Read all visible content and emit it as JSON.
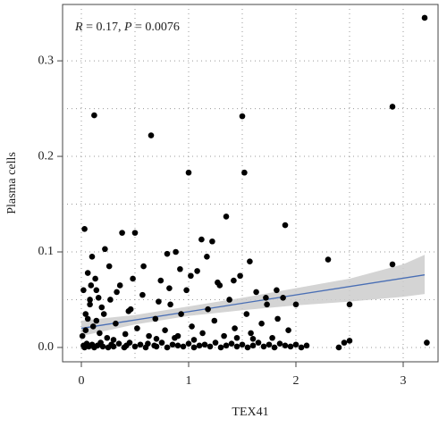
{
  "chart_data": {
    "type": "scatter",
    "annotation": [
      "R",
      " = 0.17, ",
      "P",
      " = 0.0076"
    ],
    "xlabel": "TEX41",
    "ylabel": "Plasma cells",
    "color": "#000000",
    "x": [
      3.2,
      0.12,
      0.65,
      1.5,
      2.9,
      1.0,
      1.52,
      1.35,
      1.9,
      0.03,
      0.38,
      0.5,
      1.12,
      1.22,
      2.3,
      2.9,
      3.22,
      0.1,
      0.22,
      0.88,
      0.8,
      0.02,
      0.03,
      0.05,
      0.07,
      0.1,
      0.12,
      0.15,
      0.18,
      0.2,
      0.25,
      0.28,
      0.3,
      0.35,
      0.4,
      0.42,
      0.45,
      0.5,
      0.55,
      0.6,
      0.62,
      0.68,
      0.7,
      0.75,
      0.8,
      0.85,
      0.9,
      0.95,
      1.0,
      1.05,
      1.1,
      1.15,
      1.2,
      1.25,
      1.3,
      1.35,
      1.4,
      1.45,
      1.5,
      1.55,
      1.6,
      1.65,
      1.7,
      1.75,
      1.8,
      1.85,
      1.9,
      1.95,
      2.0,
      2.05,
      2.1,
      2.4,
      2.45,
      2.5,
      0.01,
      0.04,
      0.06,
      0.08,
      0.11,
      0.14,
      0.17,
      0.21,
      0.24,
      0.27,
      0.32,
      0.36,
      0.41,
      0.46,
      0.52,
      0.57,
      0.63,
      0.69,
      0.74,
      0.78,
      0.83,
      0.87,
      0.93,
      0.98,
      1.03,
      1.08,
      1.13,
      1.18,
      1.24,
      1.29,
      1.33,
      1.38,
      1.43,
      1.48,
      1.54,
      1.58,
      1.63,
      1.68,
      1.73,
      1.78,
      1.83,
      1.88,
      1.93,
      2.0,
      2.5,
      0.02,
      0.06,
      0.09,
      0.13,
      0.16,
      0.19,
      0.26,
      0.33,
      0.44,
      0.48,
      0.58,
      0.72,
      0.82,
      0.92,
      1.02,
      1.17,
      1.27,
      1.42,
      1.57,
      1.72,
      1.82,
      0.04,
      0.08,
      0.14,
      0.3,
      0.7,
      1.05,
      1.45,
      0.9,
      1.6
    ],
    "values": [
      0.345,
      0.243,
      0.222,
      0.242,
      0.252,
      0.183,
      0.183,
      0.137,
      0.128,
      0.124,
      0.12,
      0.12,
      0.113,
      0.111,
      0.092,
      0.087,
      0.005,
      0.095,
      0.103,
      0.1,
      0.098,
      0.002,
      0.0,
      0.004,
      0.001,
      0.003,
      0.0,
      0.002,
      0.005,
      0.001,
      0.0,
      0.003,
      0.001,
      0.004,
      0.0,
      0.002,
      0.005,
      0.001,
      0.003,
      0.0,
      0.004,
      0.002,
      0.001,
      0.005,
      0.0,
      0.003,
      0.002,
      0.001,
      0.004,
      0.0,
      0.002,
      0.003,
      0.001,
      0.005,
      0.0,
      0.002,
      0.004,
      0.001,
      0.003,
      0.0,
      0.002,
      0.005,
      0.001,
      0.003,
      0.0,
      0.004,
      0.002,
      0.001,
      0.003,
      0.0,
      0.002,
      0.0,
      0.005,
      0.007,
      0.012,
      0.018,
      0.03,
      0.045,
      0.022,
      0.06,
      0.015,
      0.035,
      0.01,
      0.05,
      0.025,
      0.065,
      0.014,
      0.04,
      0.02,
      0.055,
      0.012,
      0.03,
      0.07,
      0.018,
      0.045,
      0.01,
      0.035,
      0.06,
      0.022,
      0.08,
      0.015,
      0.04,
      0.028,
      0.065,
      0.012,
      0.05,
      0.02,
      0.075,
      0.035,
      0.015,
      0.058,
      0.025,
      0.045,
      0.01,
      0.03,
      0.052,
      0.018,
      0.045,
      0.045,
      0.06,
      0.078,
      0.065,
      0.072,
      0.052,
      0.042,
      0.085,
      0.058,
      0.038,
      0.072,
      0.085,
      0.048,
      0.062,
      0.082,
      0.075,
      0.095,
      0.068,
      0.07,
      0.09,
      0.052,
      0.06,
      0.035,
      0.05,
      0.028,
      0.008,
      0.009,
      0.008,
      0.01,
      0.012,
      0.009
    ],
    "fit_x": [
      0,
      3.2
    ],
    "fit_y": [
      0.02,
      0.076
    ],
    "fit_color": "#4a6fb5",
    "band_x": [
      0,
      0.5,
      1,
      1.5,
      2,
      2.5,
      3,
      3.2
    ],
    "band_lower": [
      0.012,
      0.024,
      0.033,
      0.039,
      0.044,
      0.048,
      0.053,
      0.056
    ],
    "band_upper": [
      0.028,
      0.034,
      0.043,
      0.052,
      0.062,
      0.072,
      0.087,
      0.097
    ],
    "band_color": "#cccccc",
    "xlim": [
      -0.175,
      3.325
    ],
    "ylim": [
      -0.015,
      0.359
    ],
    "xticks": [
      0,
      1,
      2,
      3
    ],
    "yticks": [
      {
        "value": 0,
        "label": "0.0"
      },
      0.1,
      0.2,
      0.3
    ],
    "grid": true,
    "x_minor_grid": [
      0.5,
      1.5,
      2.5
    ],
    "y_minor_grid": [
      0.05,
      0.15,
      0.25
    ]
  }
}
